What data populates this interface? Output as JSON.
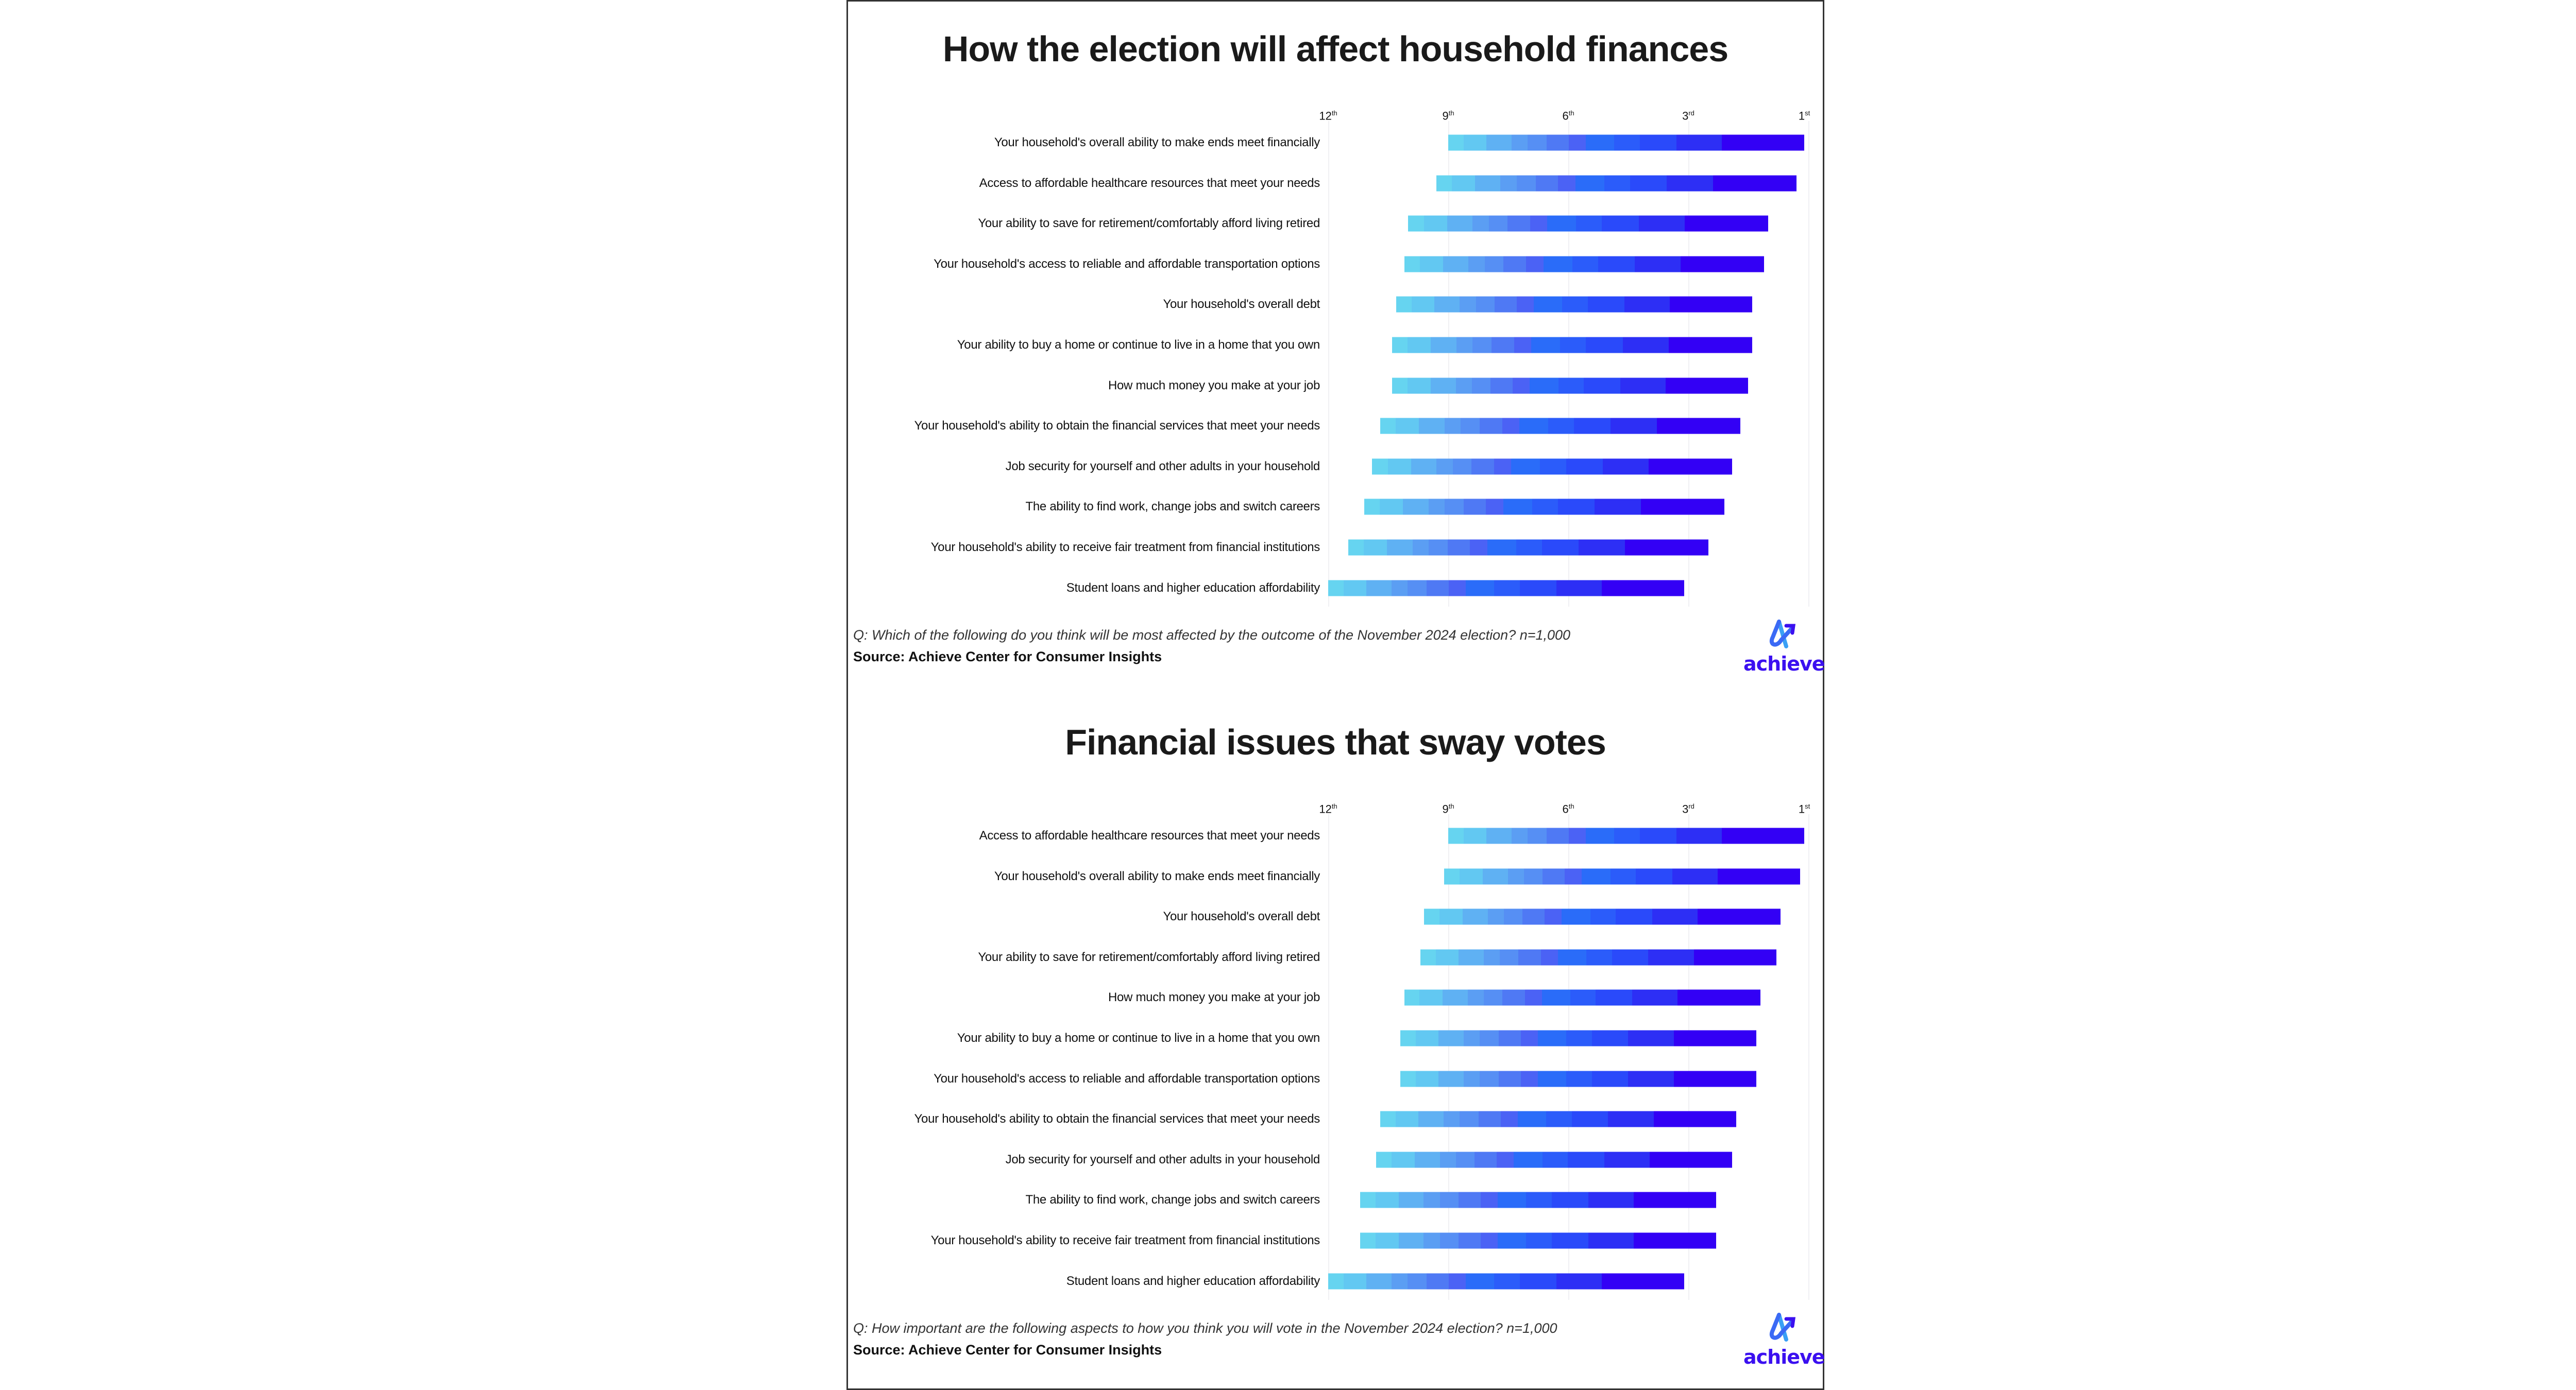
{
  "colors": {
    "segments": [
      "#66d4f0",
      "#62c8f2",
      "#5fb1f3",
      "#5b9ef3",
      "#568ff4",
      "#4f79f4",
      "#4b62f5",
      "#2a6cf9",
      "#2b5cfa",
      "#2a4afa",
      "#2d2ff5",
      "#3300f5"
    ],
    "brand": "#3b10f0"
  },
  "logo": {
    "text": "achieve",
    "icon": "achieve-arrow-logo-icon"
  },
  "chart_data": [
    {
      "type": "bar",
      "orientation": "horizontal",
      "stacked": true,
      "title": "How the election will affect household finances",
      "xaxis": {
        "range": [
          12,
          0
        ],
        "ticks": [
          {
            "value": 12,
            "num": "12",
            "suf": "th"
          },
          {
            "value": 9,
            "num": "9",
            "suf": "th"
          },
          {
            "value": 6,
            "num": "6",
            "suf": "th"
          },
          {
            "value": 3,
            "num": "3",
            "suf": "rd"
          },
          {
            "value": 0,
            "num": "1",
            "suf": "st"
          }
        ]
      },
      "grid": true,
      "segment_shares": [
        47,
        70,
        77,
        49,
        57,
        68,
        52,
        87,
        78,
        111,
        139,
        252
      ],
      "categories": [
        "Your household's overall ability to make ends meet financially",
        "Access to affordable healthcare resources that meet your needs",
        "Your ability to save for retirement/comfortably afford living retired",
        "Your household's access to reliable and affordable transportation options",
        "Your household's overall debt",
        "Your ability to buy a home or continue to live in a home that you own",
        "How much money you make at your job",
        "Your household's ability to obtain the financial services that meet your needs",
        "Job security for yourself and other adults in your household",
        "The ability to find work, change jobs and switch careers",
        "Your household's ability to receive fair treatment from financial institutions",
        "Student loans and higher education affordability"
      ],
      "bar_start": [
        9.0,
        9.3,
        10.0,
        10.1,
        10.3,
        10.4,
        10.4,
        10.7,
        10.9,
        11.1,
        11.5,
        12.0
      ],
      "bar_end": [
        0.1,
        0.3,
        1.0,
        1.1,
        1.4,
        1.4,
        1.5,
        1.7,
        1.9,
        2.1,
        2.5,
        3.1
      ],
      "question": "Q: Which of the following do you think will be most affected by the outcome of the November 2024 election? n=1,000",
      "source": "Source: Achieve Center for Consumer Insights"
    },
    {
      "type": "bar",
      "orientation": "horizontal",
      "stacked": true,
      "title": "Financial issues that sway votes",
      "xaxis": {
        "range": [
          12,
          0
        ],
        "ticks": [
          {
            "value": 12,
            "num": "12",
            "suf": "th"
          },
          {
            "value": 9,
            "num": "9",
            "suf": "th"
          },
          {
            "value": 6,
            "num": "6",
            "suf": "th"
          },
          {
            "value": 3,
            "num": "3",
            "suf": "rd"
          },
          {
            "value": 0,
            "num": "1",
            "suf": "st"
          }
        ]
      },
      "grid": true,
      "segment_shares": [
        47,
        70,
        77,
        49,
        57,
        68,
        52,
        87,
        78,
        111,
        139,
        252
      ],
      "categories": [
        "Access to affordable healthcare resources that meet your needs",
        "Your household's overall ability to make ends meet financially",
        "Your household's overall debt",
        "Your ability to save for retirement/comfortably afford living retired",
        "How much money you make at your job",
        "Your ability to buy a home or continue to live in a home that you own",
        "Your household's access to reliable and affordable transportation options",
        "Your household's ability to obtain the financial services that meet your needs",
        "Job security for yourself and other adults in your household",
        "The ability to find work, change jobs and switch careers",
        "Your household's ability to receive fair treatment from financial institutions",
        "Student loans and higher education affordability"
      ],
      "bar_start": [
        9.0,
        9.1,
        9.6,
        9.7,
        10.1,
        10.2,
        10.2,
        10.7,
        10.8,
        11.2,
        11.2,
        12.0
      ],
      "bar_end": [
        0.1,
        0.2,
        0.7,
        0.8,
        1.2,
        1.3,
        1.3,
        1.8,
        1.9,
        2.3,
        2.3,
        3.1
      ],
      "question": "Q: How important are the following aspects to how you think you will vote in the November 2024 election? n=1,000",
      "source": "Source: Achieve Center for Consumer Insights"
    }
  ]
}
